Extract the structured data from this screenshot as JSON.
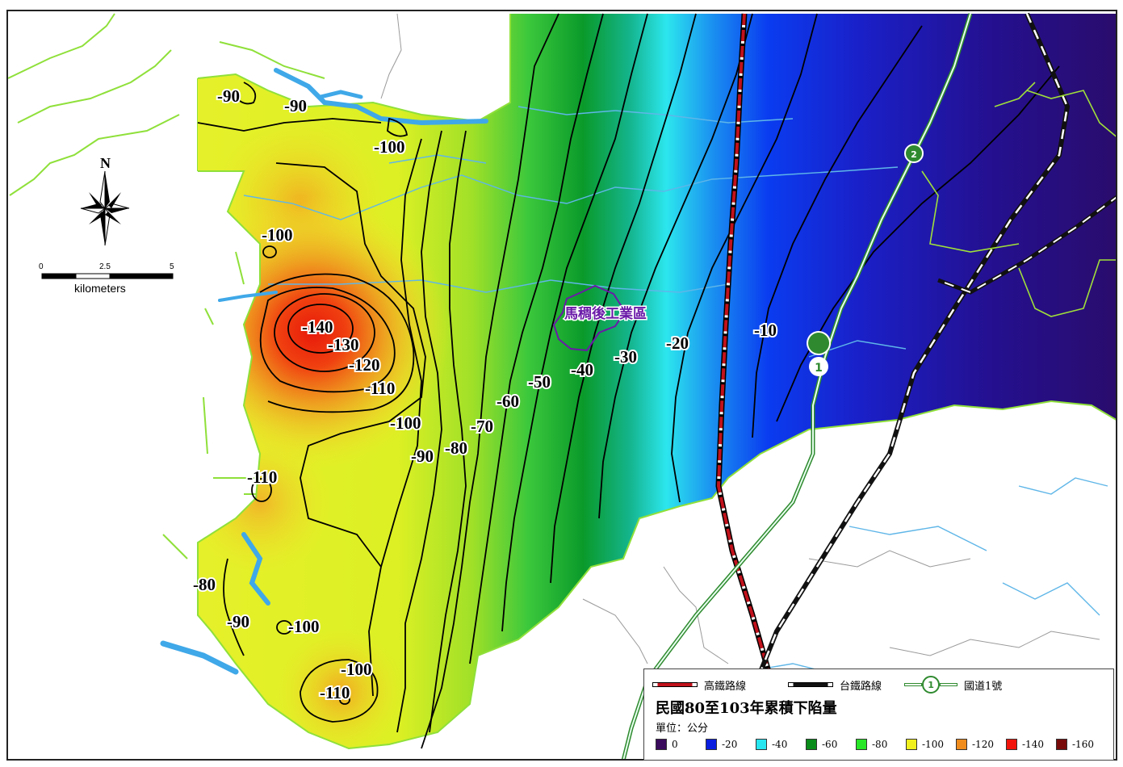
{
  "map": {
    "contour_labels": [
      {
        "text": "-90"
      },
      {
        "text": "-90"
      },
      {
        "text": "-100"
      },
      {
        "text": "-100"
      },
      {
        "text": "-140"
      },
      {
        "text": "-130"
      },
      {
        "text": "-120"
      },
      {
        "text": "-110"
      },
      {
        "text": "-100"
      },
      {
        "text": "-90"
      },
      {
        "text": "-80"
      },
      {
        "text": "-70"
      },
      {
        "text": "-60"
      },
      {
        "text": "-50"
      },
      {
        "text": "-40"
      },
      {
        "text": "-30"
      },
      {
        "text": "-20"
      },
      {
        "text": "-10"
      },
      {
        "text": "-110"
      },
      {
        "text": "-80"
      },
      {
        "text": "-90"
      },
      {
        "text": "-100"
      },
      {
        "text": "-100"
      },
      {
        "text": "-110"
      }
    ],
    "place_label": "馬稠後工業區",
    "freeway_shield": "1",
    "freeway_shield_small": "2"
  },
  "north_arrow": {
    "label": "N"
  },
  "scale_bar": {
    "ticks": [
      "0",
      "2.5",
      "5"
    ],
    "unit": "kilometers"
  },
  "legend": {
    "lines": [
      {
        "label": "高鐵路線",
        "icon": "hsr-line-icon",
        "color": "#c1121c"
      },
      {
        "label": "台鐵路線",
        "icon": "tra-line-icon",
        "color": "#111111"
      },
      {
        "label": "國道1號",
        "icon": "freeway-shield-icon",
        "color": "#2f8a2f",
        "shield_text": "1"
      }
    ],
    "title": "民國80至103年累積下陷量",
    "unit": "單位：公分",
    "classes": [
      {
        "label": "0",
        "color": "#3a0a5c"
      },
      {
        "label": "-20",
        "color": "#0a1ee0"
      },
      {
        "label": "-40",
        "color": "#28e6f0"
      },
      {
        "label": "-60",
        "color": "#0a8c1a"
      },
      {
        "label": "-80",
        "color": "#28e628"
      },
      {
        "label": "-100",
        "color": "#f0f01e"
      },
      {
        "label": "-120",
        "color": "#f08c1e"
      },
      {
        "label": "-140",
        "color": "#f0140a"
      },
      {
        "label": "-160",
        "color": "#780a0a"
      }
    ]
  }
}
